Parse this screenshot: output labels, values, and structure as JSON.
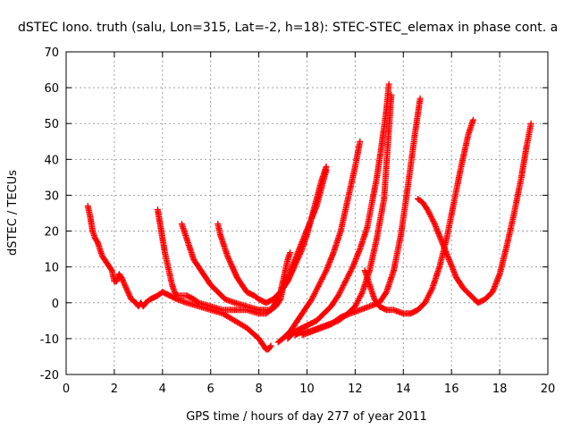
{
  "chart_data": {
    "type": "scatter",
    "title": "dSTEC Iono. truth (salu, Lon=315, Lat=-2, h=18): STEC-STEC_elemax in phase cont. a",
    "xlabel": "GPS time / hours of day 277 of year 2011",
    "ylabel": "dSTEC  / TECUs",
    "xlim": [
      0,
      20
    ],
    "ylim": [
      -20,
      70
    ],
    "grid": true,
    "legend": "none",
    "marker": "+",
    "color": "#ff0000",
    "x_ticks": [
      "0",
      "2",
      "4",
      "6",
      "8",
      "10",
      "12",
      "14",
      "16",
      "18",
      "20"
    ],
    "y_ticks": [
      "-20",
      "-10",
      "0",
      "10",
      "20",
      "30",
      "40",
      "50",
      "60",
      "70"
    ],
    "series": [
      {
        "x": [
          0.9,
          1.0,
          1.1,
          1.2,
          1.3,
          1.5,
          1.7,
          1.9,
          2.0,
          2.1,
          2.2,
          2.3,
          2.5,
          2.7,
          2.9,
          3.0,
          3.1,
          3.2,
          3.3,
          3.5,
          3.8,
          4.0,
          4.3,
          4.6,
          5.0,
          5.5,
          6.0,
          6.5,
          7.0,
          7.5,
          8.0,
          8.2,
          8.3,
          8.4,
          8.5
        ],
        "y": [
          27,
          24,
          20,
          18,
          17,
          13,
          11,
          9,
          6,
          6,
          8,
          7,
          4,
          1,
          0,
          -1,
          0,
          -1,
          0,
          1,
          2,
          3,
          2,
          1,
          0,
          -1,
          -2,
          -3,
          -5,
          -7,
          -10,
          -12,
          -13,
          -13,
          -12
        ]
      },
      {
        "x": [
          3.8,
          3.9,
          4.0,
          4.1,
          4.2,
          4.3,
          4.4,
          4.5,
          4.6,
          4.8,
          5.0,
          5.3,
          5.5,
          6.0,
          6.5,
          7.0,
          7.5,
          8.0,
          8.3,
          8.5,
          8.7,
          8.9,
          9.0,
          9.1,
          9.2,
          9.3
        ],
        "y": [
          26,
          22,
          18,
          14,
          11,
          8,
          5,
          3,
          2,
          2,
          2,
          1,
          0,
          -1,
          -2,
          -2,
          -2,
          -3,
          -3,
          -2,
          0,
          3,
          6,
          9,
          12,
          14
        ]
      },
      {
        "x": [
          4.8,
          4.9,
          5.0,
          5.1,
          5.2,
          5.3,
          5.5,
          5.8,
          6.0,
          6.3,
          6.6,
          7.0,
          7.5,
          8.0,
          8.5,
          8.7,
          8.9,
          9.0,
          9.2,
          9.4,
          9.6,
          9.8,
          10.0,
          10.2,
          10.4,
          10.6,
          10.8
        ],
        "y": [
          22,
          20,
          18,
          16,
          14,
          12,
          10,
          7,
          5,
          3,
          1,
          0,
          -1,
          -2,
          -2,
          -1,
          1,
          4,
          6,
          9,
          12,
          15,
          19,
          24,
          29,
          34,
          38
        ]
      },
      {
        "x": [
          6.3,
          6.4,
          6.5,
          6.7,
          6.9,
          7.1,
          7.3,
          7.5,
          7.8,
          8.0,
          8.3,
          8.6,
          8.9,
          9.2,
          9.5,
          9.8,
          10.1,
          10.4,
          10.6,
          10.8
        ],
        "y": [
          22,
          19,
          17,
          13,
          10,
          7,
          5,
          3,
          2,
          1,
          0,
          1,
          3,
          7,
          12,
          17,
          22,
          27,
          32,
          37
        ]
      },
      {
        "x": [
          8.8,
          9.0,
          9.3,
          9.6,
          9.9,
          10.2,
          10.5,
          10.8,
          11.1,
          11.4,
          11.6,
          11.8,
          12.0,
          12.2
        ],
        "y": [
          -11,
          -10,
          -8,
          -5,
          -2,
          1,
          5,
          9,
          14,
          20,
          26,
          32,
          38,
          45
        ]
      },
      {
        "x": [
          9.2,
          9.5,
          9.8,
          10.1,
          10.4,
          10.7,
          11.0,
          11.3,
          11.6,
          11.9,
          12.2,
          12.5,
          12.7,
          12.9,
          13.1,
          13.3,
          13.4
        ],
        "y": [
          -10,
          -8,
          -7,
          -6,
          -5,
          -3,
          -1,
          2,
          6,
          10,
          15,
          21,
          28,
          35,
          44,
          54,
          61
        ]
      },
      {
        "x": [
          9.5,
          9.8,
          10.1,
          10.5,
          10.9,
          11.3,
          11.7,
          12.0,
          12.3,
          12.6,
          12.9,
          13.2,
          13.5
        ],
        "y": [
          -9,
          -8,
          -8,
          -7,
          -6,
          -5,
          -3,
          -1,
          3,
          9,
          18,
          29,
          58
        ]
      },
      {
        "x": [
          9.8,
          10.2,
          10.6,
          11.0,
          11.4,
          11.8,
          12.2,
          12.6,
          13.0,
          13.3,
          13.6,
          13.9,
          14.2,
          14.5,
          14.7
        ],
        "y": [
          -9,
          -8,
          -7,
          -6,
          -4,
          -3,
          -2,
          -1,
          0,
          3,
          9,
          19,
          33,
          48,
          57
        ]
      },
      {
        "x": [
          12.4,
          12.6,
          12.8,
          13.0,
          13.3,
          13.6,
          14.0,
          14.3,
          14.6,
          14.9,
          15.2,
          15.5,
          15.8,
          16.1,
          16.4,
          16.7,
          16.9
        ],
        "y": [
          9,
          5,
          1,
          -1,
          -2,
          -2,
          -3,
          -3,
          -2,
          0,
          4,
          10,
          18,
          28,
          38,
          47,
          51
        ]
      },
      {
        "x": [
          14.6,
          14.8,
          15.0,
          15.3,
          15.6,
          15.9,
          16.2,
          16.5,
          16.8,
          17.1,
          17.4,
          17.7,
          18.0,
          18.3,
          18.6,
          18.9,
          19.1,
          19.3
        ],
        "y": [
          29,
          28,
          26,
          22,
          17,
          12,
          7,
          4,
          2,
          0,
          1,
          3,
          8,
          16,
          25,
          35,
          43,
          50
        ]
      }
    ]
  }
}
